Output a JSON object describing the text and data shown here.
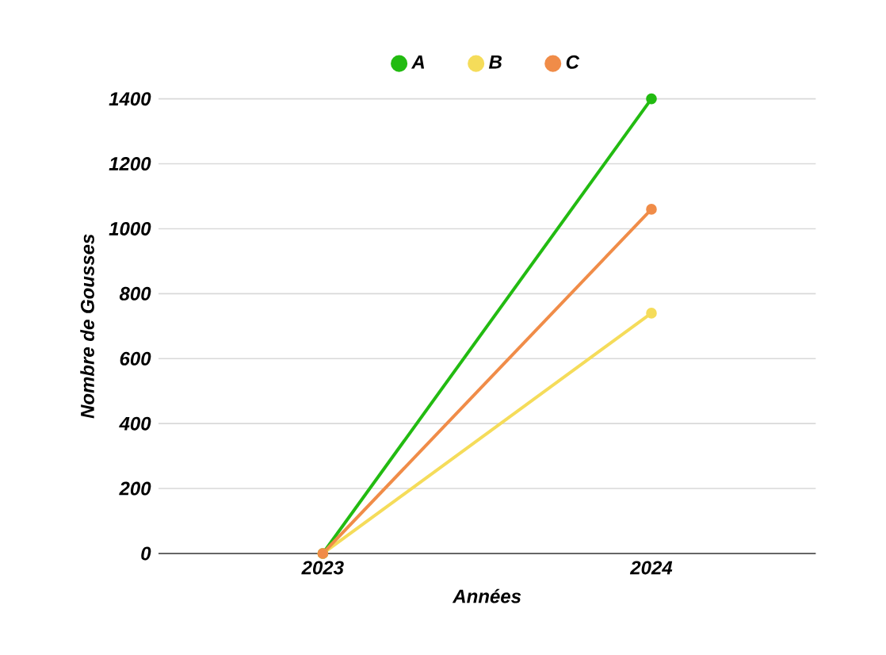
{
  "chart_data": {
    "type": "line",
    "xlabel": "Années",
    "ylabel": "Nombre de Gousses",
    "categories": [
      "2023",
      "2024"
    ],
    "series": [
      {
        "name": "A",
        "color": "#22bb11",
        "values": [
          0,
          1400
        ]
      },
      {
        "name": "B",
        "color": "#f5dc5a",
        "values": [
          0,
          740
        ]
      },
      {
        "name": "C",
        "color": "#f08c48",
        "values": [
          0,
          1060
        ]
      }
    ],
    "ylim": [
      0,
      1400
    ],
    "yticks": [
      0,
      200,
      400,
      600,
      800,
      1000,
      1200,
      1400
    ],
    "grid": "y",
    "legend": "top",
    "marker": "circle",
    "line_style": "solid"
  }
}
